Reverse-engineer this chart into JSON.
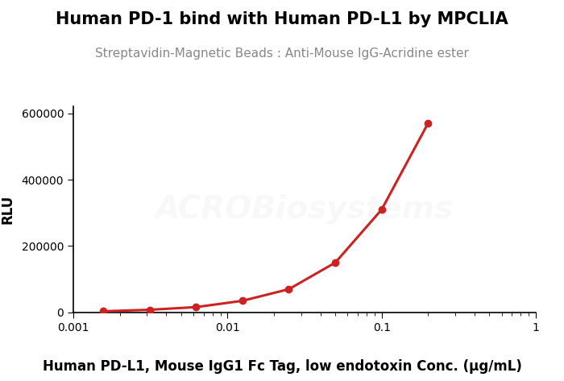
{
  "title": "Human PD-1 bind with Human PD-L1 by MPCLIA",
  "subtitle": "Streptavidin-Magnetic Beads : Anti-Mouse IgG-Acridine ester",
  "xlabel": "Human PD-L1, Mouse IgG1 Fc Tag, low endotoxin Conc. (μg/mL)",
  "ylabel": "RLU",
  "x_data": [
    0.00156,
    0.00313,
    0.00625,
    0.0125,
    0.025,
    0.05,
    0.1,
    0.2
  ],
  "y_data": [
    3500,
    8000,
    16000,
    35000,
    70000,
    150000,
    310000,
    570000
  ],
  "line_color": "#cc2222",
  "marker_color": "#cc2222",
  "marker": "o",
  "marker_size": 6,
  "line_width": 2.2,
  "xlim": [
    0.001,
    1.0
  ],
  "ylim": [
    0,
    620000
  ],
  "yticks": [
    0,
    200000,
    400000,
    600000
  ],
  "xticks": [
    0.001,
    0.01,
    0.1,
    1
  ],
  "xtick_labels": [
    "0.001",
    "0.01",
    "0.1",
    "1"
  ],
  "title_fontsize": 15,
  "subtitle_fontsize": 11,
  "xlabel_fontsize": 12,
  "ylabel_fontsize": 12,
  "tick_fontsize": 10,
  "background_color": "#ffffff",
  "watermark_text": "ACROBiosystems",
  "watermark_color": "#dddddd",
  "watermark_fontsize": 28,
  "watermark_alpha": 0.18
}
